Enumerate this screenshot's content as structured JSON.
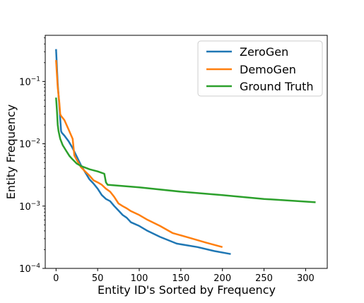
{
  "chart_data": {
    "type": "line",
    "title": "",
    "xlabel": "Entity ID's Sorted by Frequency",
    "ylabel": "Entity Frequency",
    "xlim": [
      -13,
      326
    ],
    "ylim": [
      0.0001,
      0.55
    ],
    "yscale": "log",
    "grid": false,
    "legend_position": "top-right",
    "x_ticks": [
      0,
      50,
      100,
      150,
      200,
      250,
      300
    ],
    "x_tick_labels": [
      "0",
      "50",
      "100",
      "150",
      "200",
      "250",
      "300"
    ],
    "y_ticks": [
      0.0001,
      0.001,
      0.01,
      0.1
    ],
    "y_tick_labels": [
      {
        "base": "10",
        "exp": "−4"
      },
      {
        "base": "10",
        "exp": "−3"
      },
      {
        "base": "10",
        "exp": "−2"
      },
      {
        "base": "10",
        "exp": "−1"
      }
    ],
    "series": [
      {
        "name": "ZeroGen",
        "color": "#1f77b4",
        "x": [
          0,
          2,
          4,
          5,
          6,
          7,
          10,
          15,
          20,
          25,
          30,
          35,
          40,
          45,
          50,
          55,
          60,
          65,
          70,
          75,
          80,
          85,
          90,
          100,
          110,
          125,
          145,
          170,
          190,
          210
        ],
        "y": [
          0.33,
          0.09,
          0.04,
          0.025,
          0.016,
          0.015,
          0.0135,
          0.011,
          0.0085,
          0.0062,
          0.0045,
          0.0035,
          0.0027,
          0.0023,
          0.0019,
          0.0015,
          0.0013,
          0.0012,
          0.001,
          0.00085,
          0.00072,
          0.00065,
          0.00055,
          0.00048,
          0.0004,
          0.00032,
          0.00025,
          0.00022,
          0.00019,
          0.00017
        ]
      },
      {
        "name": "DemoGen",
        "color": "#ff7f0e",
        "x": [
          0,
          2,
          4,
          5,
          6,
          7,
          10,
          15,
          20,
          22,
          25,
          30,
          35,
          40,
          45,
          50,
          55,
          60,
          65,
          70,
          75,
          80,
          85,
          90,
          100,
          110,
          125,
          140,
          160,
          180,
          200
        ],
        "y": [
          0.22,
          0.08,
          0.045,
          0.03,
          0.028,
          0.027,
          0.024,
          0.017,
          0.012,
          0.0065,
          0.0055,
          0.0042,
          0.0036,
          0.0031,
          0.0026,
          0.0024,
          0.0022,
          0.0019,
          0.0017,
          0.0014,
          0.0011,
          0.001,
          0.00092,
          0.00083,
          0.00072,
          0.0006,
          0.00048,
          0.00037,
          0.00031,
          0.00026,
          0.00022
        ]
      },
      {
        "name": "Ground Truth",
        "color": "#2ca02c",
        "x": [
          0,
          1,
          2,
          3,
          5,
          8,
          12,
          16,
          20,
          25,
          30,
          40,
          50,
          58,
          60,
          62,
          100,
          150,
          200,
          250,
          312
        ],
        "y": [
          0.055,
          0.035,
          0.02,
          0.016,
          0.012,
          0.0095,
          0.0078,
          0.0064,
          0.0056,
          0.0048,
          0.0044,
          0.0039,
          0.0036,
          0.0033,
          0.0024,
          0.0022,
          0.002,
          0.0017,
          0.0015,
          0.0013,
          0.00115
        ]
      }
    ]
  }
}
